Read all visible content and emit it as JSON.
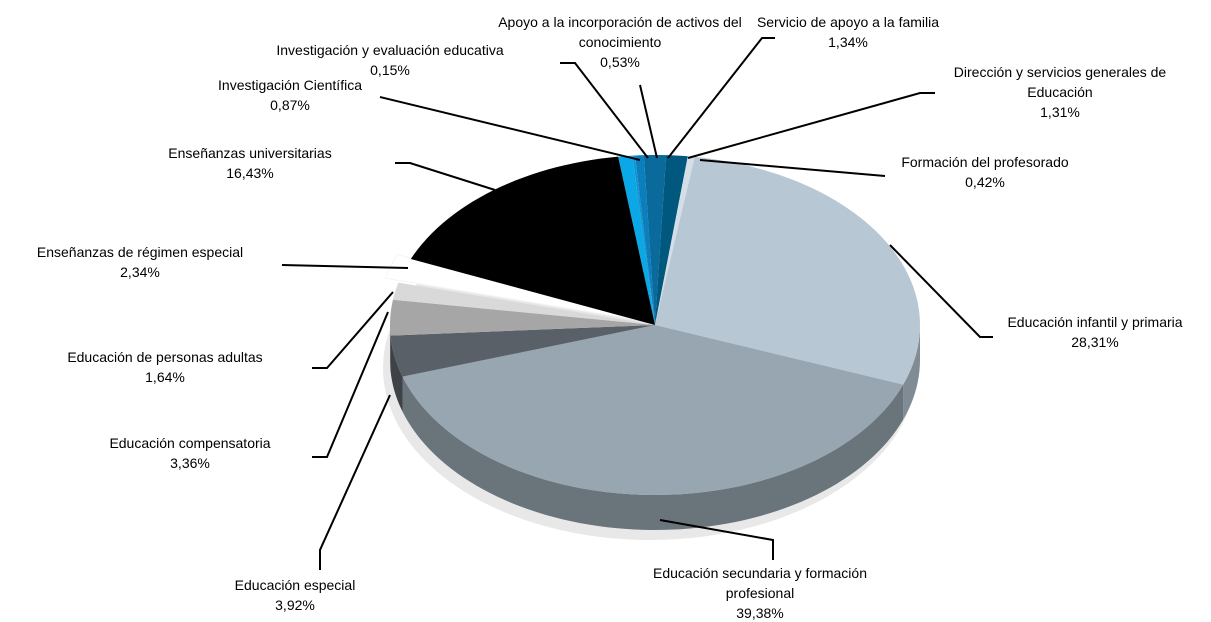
{
  "chart_data": {
    "type": "pie",
    "categories": [
      "Investigación Científica",
      "Investigación y evaluación educativa",
      "Apoyo a la incorporación de activos del conocimiento",
      "Servicio de apoyo a la familia",
      "Dirección y servicios generales de Educación",
      "Formación del profesorado",
      "Educación infantil y primaria",
      "Educación secundaria y formación profesional",
      "Educación especial",
      "Educación compensatoria",
      "Educación de personas adultas",
      "Enseñanzas de régimen especial",
      "Enseñanzas universitarias"
    ],
    "values": [
      0.87,
      0.15,
      0.53,
      1.34,
      1.31,
      0.42,
      28.31,
      39.38,
      3.92,
      3.36,
      1.64,
      2.34,
      16.43
    ],
    "value_labels": [
      "0,87%",
      "0,15%",
      "0,53%",
      "1,34%",
      "1,31%",
      "0,42%",
      "28,31%",
      "39,38%",
      "3,92%",
      "3,36%",
      "1,64%",
      "2,34%",
      "16,43%"
    ],
    "colors": [
      "#0aa8e6",
      "#1592cf",
      "#0b7fbd",
      "#0a6a9c",
      "#00587f",
      "#d5dee6",
      "#b7c7d3",
      "#97a6b0",
      "#5a6067",
      "#a6a6a6",
      "#d9d9d9",
      "#ffffff",
      "#000000"
    ]
  }
}
